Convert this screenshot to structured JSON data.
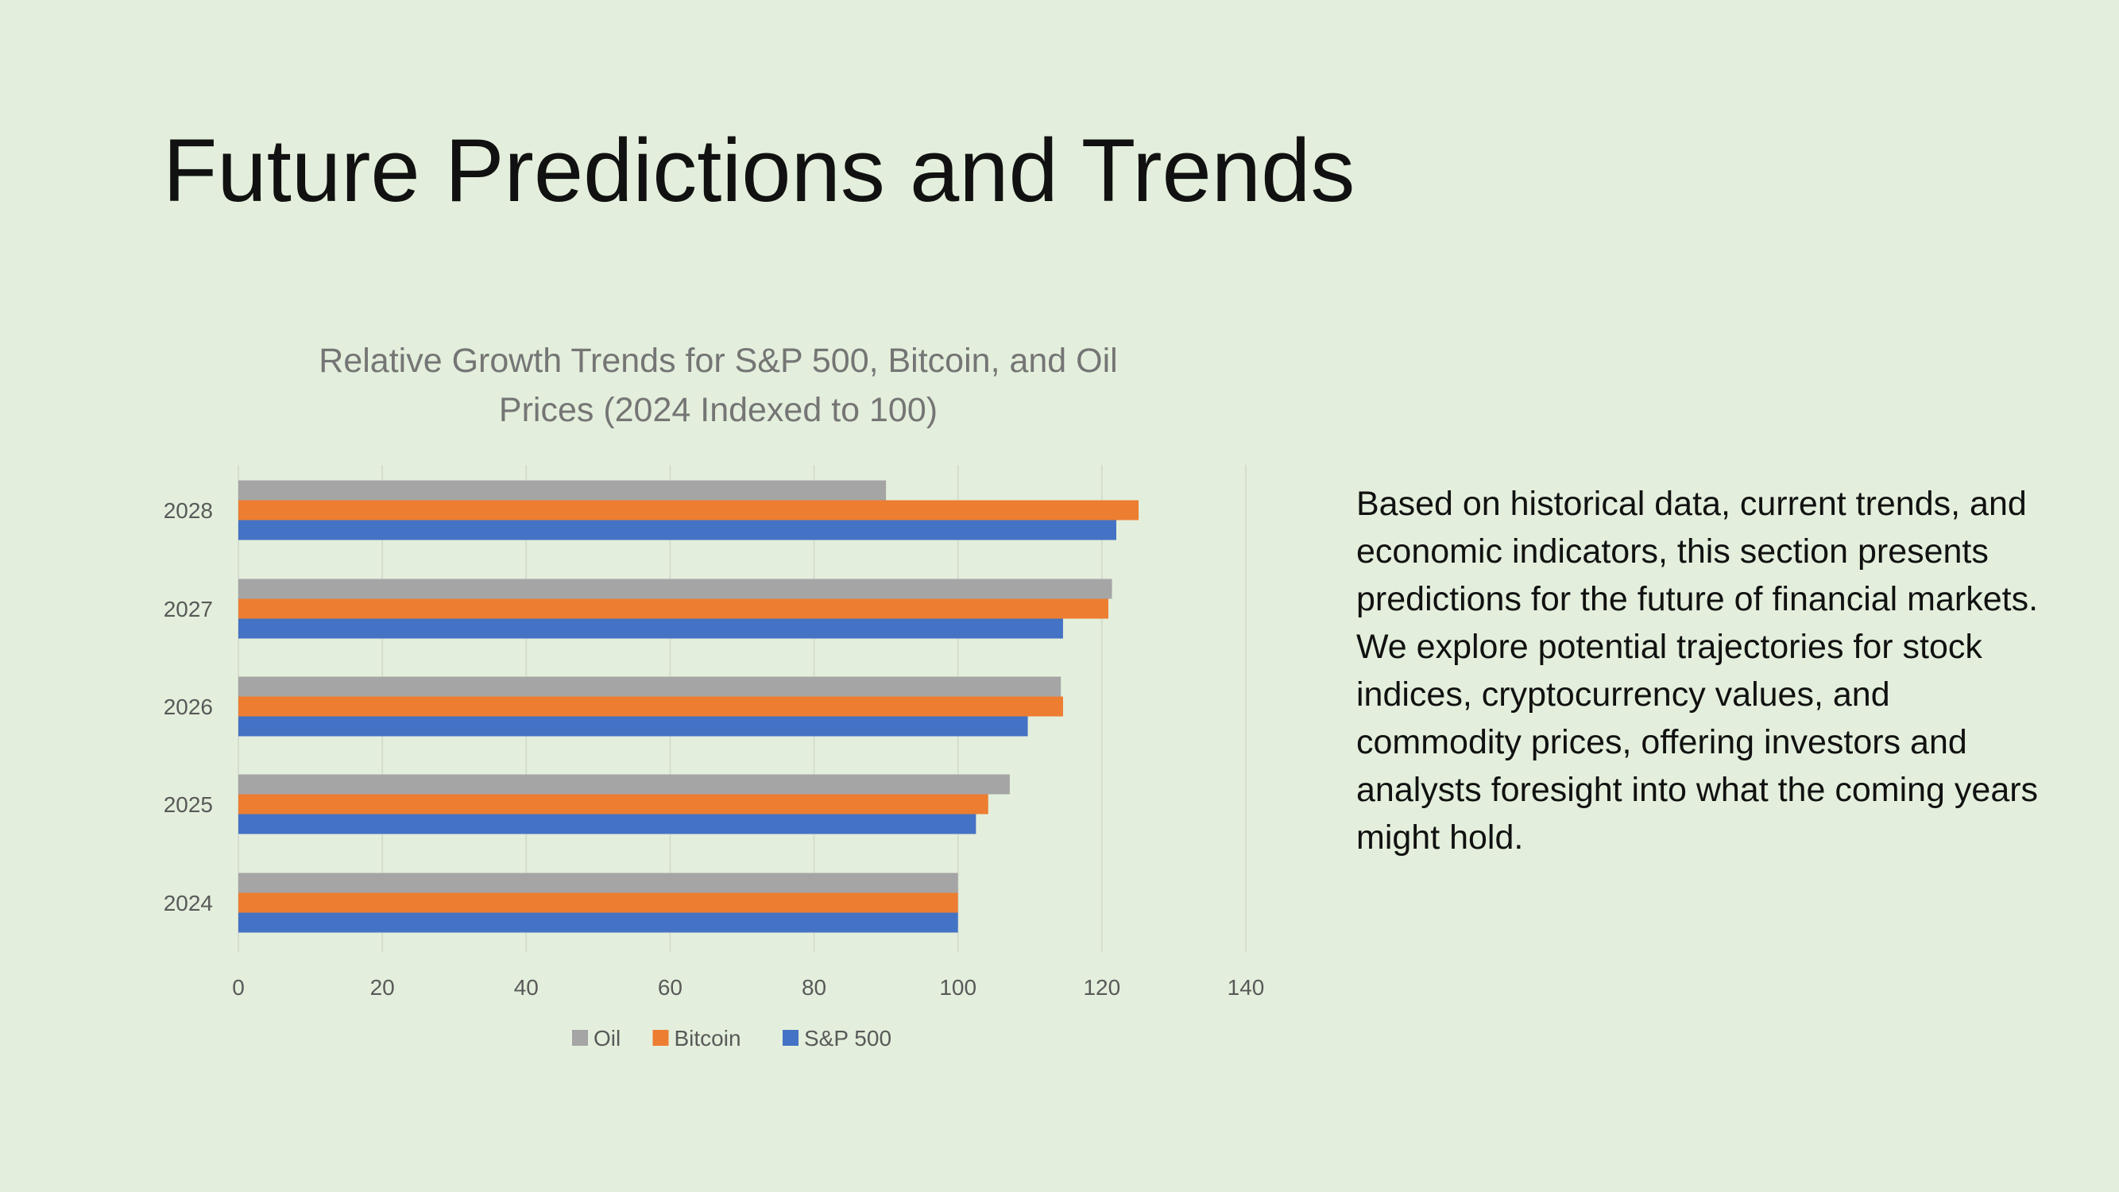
{
  "slide": {
    "title": "Future Predictions and Trends",
    "body": "Based on historical data, current trends, and economic indicators, this section presents predictions for the future of financial markets. We explore potential trajectories for stock indices, cryptocurrency values, and commodity prices, offering investors and analysts foresight into what the coming years might hold."
  },
  "colors": {
    "background": "#e3efdc",
    "oil": "#a5a5a5",
    "bitcoin": "#ed7d31",
    "sp500": "#4472c4",
    "text": "#595959"
  },
  "chart_data": {
    "type": "bar",
    "orientation": "horizontal",
    "title_lines": [
      "Relative Growth Trends for S&P 500, Bitcoin, and Oil",
      "Prices (2024 Indexed to 100)"
    ],
    "categories": [
      "2024",
      "2025",
      "2026",
      "2027",
      "2028"
    ],
    "series": [
      {
        "name": "S&P 500",
        "color": "#4472c4",
        "values": [
          100,
          102.5,
          109.7,
          114.6,
          122.0
        ]
      },
      {
        "name": "Bitcoin",
        "color": "#ed7d31",
        "values": [
          100,
          104.2,
          114.6,
          120.9,
          125.1
        ]
      },
      {
        "name": "Oil",
        "color": "#a5a5a5",
        "values": [
          100,
          107.2,
          114.3,
          121.4,
          90.0
        ]
      }
    ],
    "xlim": [
      0,
      140
    ],
    "xticks": [
      "0",
      "20",
      "40",
      "60",
      "80",
      "100",
      "120",
      "140"
    ],
    "legend": {
      "position": "bottom",
      "order": [
        "Oil",
        "Bitcoin",
        "S&P 500"
      ]
    },
    "grid": true
  }
}
